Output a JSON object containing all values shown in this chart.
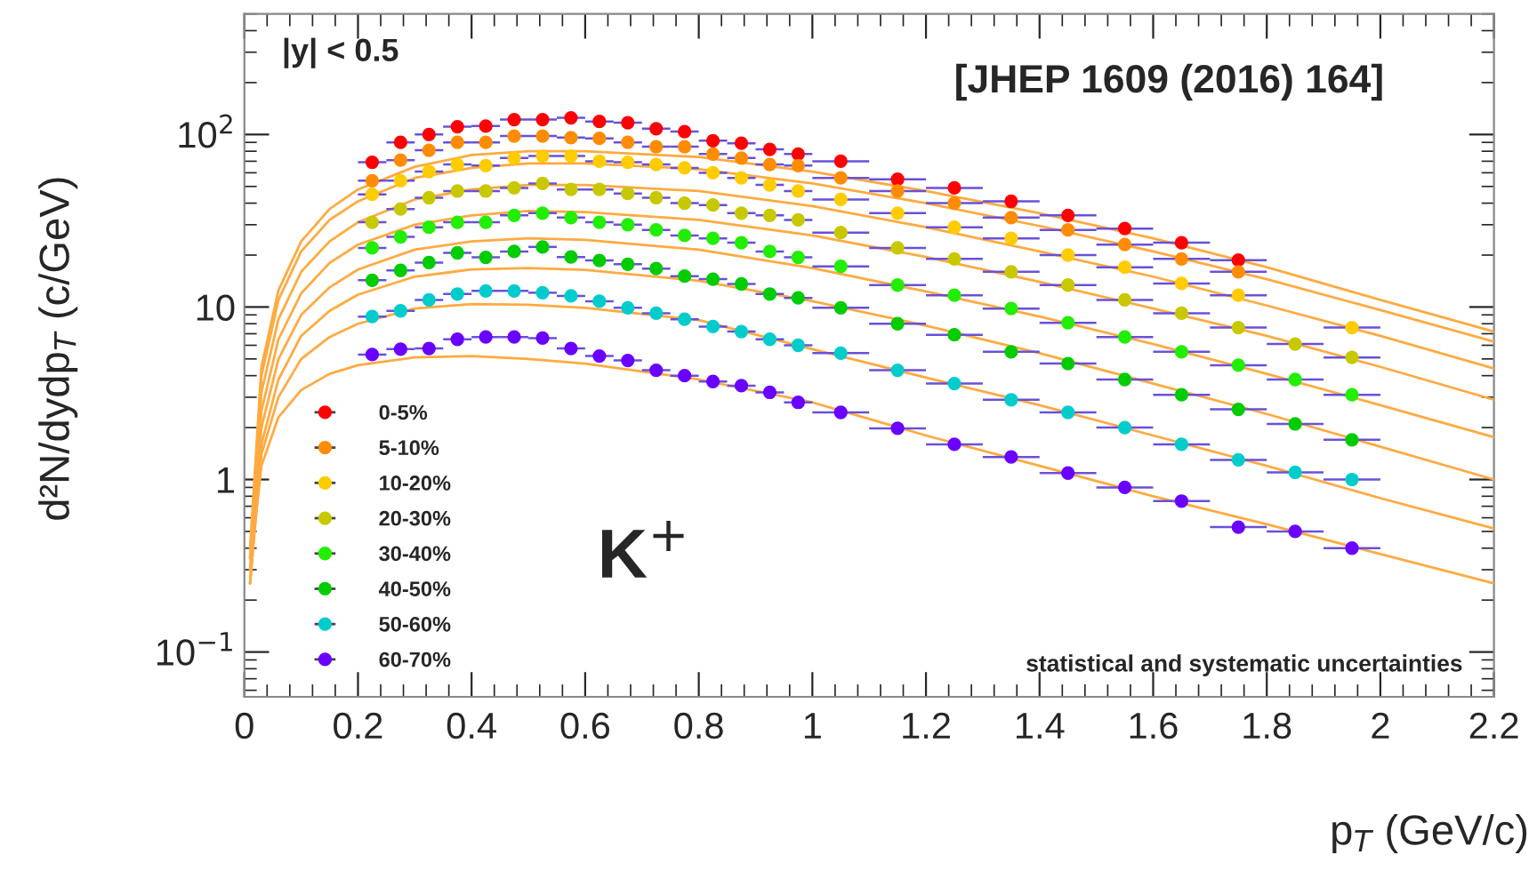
{
  "chart_data": {
    "type": "scatter",
    "xlabel": "p$_{T}$ (GeV/c)",
    "ylabel": "d²N/dydp$_{T}$ (c/GeV)",
    "annotations": [
      "|y| < 0.5",
      "[JHEP 1609 (2016) 164]",
      "K$^{+}$",
      "statistical and systematic uncertainties"
    ],
    "x": [
      0.225,
      0.275,
      0.325,
      0.375,
      0.425,
      0.475,
      0.525,
      0.575,
      0.625,
      0.675,
      0.725,
      0.775,
      0.825,
      0.875,
      0.925,
      0.975,
      1.05,
      1.15,
      1.25,
      1.35,
      1.45,
      1.55,
      1.65,
      1.75,
      1.85,
      1.95
    ],
    "log": "y",
    "xlim": [
      0,
      2.2
    ],
    "ylim": [
      0.055,
      500
    ],
    "xticks": [
      0,
      0.2,
      0.4,
      0.6,
      0.8,
      1,
      1.2,
      1.4,
      1.6,
      1.8,
      2,
      2.2
    ],
    "yticks": [
      {
        "value": 0.1,
        "label": "10$^{−1}$"
      },
      1,
      10,
      {
        "value": 100,
        "label": "10$^{2}$"
      }
    ],
    "grid": false,
    "legend": "bottom left",
    "marker": "circle",
    "series": [
      {
        "name": "0-5%",
        "color": "#ff0000",
        "values": [
          69,
          90,
          100,
          111,
          112,
          122,
          122,
          125,
          119,
          117,
          108,
          104,
          92,
          89,
          82,
          77,
          70,
          55,
          49,
          41,
          34,
          28.5,
          23.6,
          18.7,
          null,
          null
        ],
        "xerrors": [
          0.025,
          0.025,
          0.025,
          0.025,
          0.025,
          0.025,
          0.025,
          0.025,
          0.025,
          0.025,
          0.025,
          0.025,
          0.025,
          0.025,
          0.025,
          0.025,
          0.05,
          0.05,
          0.05,
          0.05,
          0.05,
          0.05,
          0.05,
          0.05,
          null,
          null
        ]
      },
      {
        "name": "5-10%",
        "color": "#ff8c00",
        "values": [
          54,
          71,
          81,
          90,
          90,
          98,
          98,
          96,
          95,
          90,
          85,
          85,
          77,
          73,
          67,
          66,
          56,
          47,
          40,
          33,
          28,
          23,
          19,
          16,
          null,
          null
        ],
        "xerrors": [
          0.025,
          0.025,
          0.025,
          0.025,
          0.025,
          0.025,
          0.025,
          0.025,
          0.025,
          0.025,
          0.025,
          0.025,
          0.025,
          0.025,
          0.025,
          0.025,
          0.05,
          0.05,
          0.05,
          0.05,
          0.05,
          0.05,
          0.05,
          0.05,
          null,
          null
        ]
      },
      {
        "name": "10-20%",
        "color": "#ffcc00",
        "values": [
          45,
          54,
          61,
          67,
          66,
          73,
          75,
          75,
          70,
          69,
          67,
          64,
          60,
          56,
          51,
          47,
          42,
          35,
          29,
          25,
          20,
          17,
          13.7,
          11.7,
          null,
          7.6
        ],
        "xerrors": [
          0.025,
          0.025,
          0.025,
          0.025,
          0.025,
          0.025,
          0.025,
          0.025,
          0.025,
          0.025,
          0.025,
          0.025,
          0.025,
          0.025,
          0.025,
          0.025,
          0.05,
          0.05,
          0.05,
          0.05,
          0.05,
          0.05,
          0.05,
          0.05,
          null,
          0.05
        ]
      },
      {
        "name": "20-30%",
        "color": "#c8c800",
        "values": [
          31,
          37,
          43,
          47,
          47,
          49,
          52,
          48,
          48,
          45.5,
          43,
          40,
          39,
          35,
          34,
          32,
          27,
          22,
          19,
          16,
          13.4,
          11,
          9.2,
          7.6,
          6.1,
          5.1
        ],
        "xerrors": [
          0.025,
          0.025,
          0.025,
          0.025,
          0.025,
          0.025,
          0.025,
          0.025,
          0.025,
          0.025,
          0.025,
          0.025,
          0.025,
          0.025,
          0.025,
          0.025,
          0.05,
          0.05,
          0.05,
          0.05,
          0.05,
          0.05,
          0.05,
          0.05,
          0.05,
          0.05
        ]
      },
      {
        "name": "30-40%",
        "color": "#22ee00",
        "values": [
          22,
          25.5,
          29,
          31,
          31,
          34,
          35,
          33,
          31,
          30,
          28,
          26,
          25,
          23.6,
          21,
          19.4,
          17.2,
          13.4,
          11.7,
          9.8,
          8.1,
          6.7,
          5.5,
          4.6,
          3.8,
          3.1
        ],
        "xerrors": [
          0.025,
          0.025,
          0.025,
          0.025,
          0.025,
          0.025,
          0.025,
          0.025,
          0.025,
          0.025,
          0.025,
          0.025,
          0.025,
          0.025,
          0.025,
          0.025,
          0.05,
          0.05,
          0.05,
          0.05,
          0.05,
          0.05,
          0.05,
          0.05,
          0.05,
          0.05
        ]
      },
      {
        "name": "40-50%",
        "color": "#00cc00",
        "values": [
          14.3,
          16.3,
          18.1,
          20.6,
          19.4,
          21,
          22.3,
          19.5,
          18.6,
          17.7,
          16.7,
          15.1,
          14.5,
          13.6,
          11.9,
          11.3,
          9.9,
          8.0,
          6.9,
          5.5,
          4.7,
          3.8,
          3.1,
          2.55,
          2.1,
          1.7
        ],
        "xerrors": [
          0.025,
          0.025,
          0.025,
          0.025,
          0.025,
          0.025,
          0.025,
          0.025,
          0.025,
          0.025,
          0.025,
          0.025,
          0.025,
          0.025,
          0.025,
          0.025,
          0.05,
          0.05,
          0.05,
          0.05,
          0.05,
          0.05,
          0.05,
          0.05,
          0.05,
          0.05
        ]
      },
      {
        "name": "50-60%",
        "color": "#00cccc",
        "values": [
          8.8,
          9.5,
          11,
          11.9,
          12.4,
          12.4,
          12.1,
          11.6,
          10.8,
          9.9,
          9.2,
          8.5,
          7.7,
          7.2,
          6.5,
          6.0,
          5.4,
          4.3,
          3.6,
          2.9,
          2.45,
          2.0,
          1.6,
          1.3,
          1.1,
          1.0
        ],
        "xerrors": [
          0.025,
          0.025,
          0.025,
          0.025,
          0.025,
          0.025,
          0.025,
          0.025,
          0.025,
          0.025,
          0.025,
          0.025,
          0.025,
          0.025,
          0.025,
          0.025,
          0.05,
          0.05,
          0.05,
          0.05,
          0.05,
          0.05,
          0.05,
          0.05,
          0.05,
          0.05
        ]
      },
      {
        "name": "60-70%",
        "color": "#6a00ff",
        "values": [
          5.3,
          5.7,
          5.75,
          6.5,
          6.7,
          6.7,
          6.6,
          5.75,
          5.2,
          4.9,
          4.3,
          4.0,
          3.7,
          3.5,
          3.2,
          2.8,
          2.45,
          1.98,
          1.6,
          1.35,
          1.09,
          0.9,
          0.75,
          0.53,
          0.5,
          0.4
        ],
        "xerrors": [
          0.025,
          0.025,
          0.025,
          0.025,
          0.025,
          0.025,
          0.025,
          0.025,
          0.025,
          0.025,
          0.025,
          0.025,
          0.025,
          0.025,
          0.025,
          0.025,
          0.05,
          0.05,
          0.05,
          0.05,
          0.05,
          0.05,
          0.05,
          0.05,
          0.05,
          0.05
        ]
      },
      {
        "type": "line",
        "color": "#ffaa40",
        "marker": "none",
        "x": [
          0.01,
          0.03,
          0.06,
          0.1,
          0.15,
          0.2,
          0.3,
          0.4,
          0.5,
          0.6,
          0.8,
          1.0,
          1.2,
          1.4,
          1.6,
          1.8,
          2.0,
          2.2
        ],
        "values": [
          0.4,
          4.5,
          12.5,
          24,
          37,
          48,
          65,
          76,
          80,
          80,
          74,
          61,
          47,
          35,
          25,
          17,
          11,
          7.2
        ]
      },
      {
        "type": "line",
        "color": "#ffaa40",
        "marker": "none",
        "x": [
          0.01,
          0.03,
          0.06,
          0.1,
          0.15,
          0.2,
          0.3,
          0.4,
          0.5,
          0.6,
          0.8,
          1.0,
          1.2,
          1.4,
          1.6,
          1.8,
          2.0,
          2.2
        ],
        "values": [
          0.35,
          4,
          11,
          21,
          32,
          41,
          56,
          64,
          68,
          68,
          63,
          52,
          40,
          29.5,
          21,
          14.5,
          9.6,
          6.3
        ]
      },
      {
        "type": "line",
        "color": "#ffaa40",
        "marker": "none",
        "x": [
          0.01,
          0.03,
          0.06,
          0.1,
          0.15,
          0.2,
          0.3,
          0.4,
          0.5,
          0.6,
          0.8,
          1.0,
          1.2,
          1.4,
          1.6,
          1.8,
          2.0,
          2.2
        ],
        "values": [
          0.35,
          3.2,
          8.5,
          16,
          24,
          31,
          42,
          48,
          51,
          51,
          47,
          38.5,
          29,
          21,
          15,
          10.2,
          6.8,
          4.4
        ]
      },
      {
        "type": "line",
        "color": "#ffaa40",
        "marker": "none",
        "x": [
          0.01,
          0.03,
          0.06,
          0.1,
          0.15,
          0.2,
          0.3,
          0.4,
          0.5,
          0.6,
          0.8,
          1.0,
          1.2,
          1.4,
          1.6,
          1.8,
          2.0,
          2.2
        ],
        "values": [
          0.3,
          2.5,
          6.5,
          12,
          18,
          23,
          30,
          34,
          36,
          35.5,
          32,
          26,
          19.5,
          14,
          9.8,
          6.8,
          4.5,
          2.9
        ]
      },
      {
        "type": "line",
        "color": "#ffaa40",
        "marker": "none",
        "x": [
          0.01,
          0.03,
          0.06,
          0.1,
          0.15,
          0.2,
          0.3,
          0.4,
          0.5,
          0.6,
          0.8,
          1.0,
          1.2,
          1.4,
          1.6,
          1.8,
          2.0,
          2.2
        ],
        "values": [
          0.25,
          2.0,
          5.0,
          9,
          13,
          16.5,
          21.5,
          24,
          25,
          24.5,
          21.5,
          16.8,
          12.3,
          8.8,
          6.1,
          4.1,
          2.7,
          1.76
        ]
      },
      {
        "type": "line",
        "color": "#ffaa40",
        "marker": "none",
        "x": [
          0.01,
          0.03,
          0.06,
          0.1,
          0.15,
          0.2,
          0.3,
          0.4,
          0.5,
          0.6,
          0.8,
          1.0,
          1.2,
          1.4,
          1.6,
          1.8,
          2.0,
          2.2
        ],
        "values": [
          0.25,
          1.6,
          3.8,
          6.8,
          9.5,
          11.8,
          15,
          16.5,
          16.8,
          16.4,
          14.2,
          10.8,
          7.8,
          5.4,
          3.6,
          2.4,
          1.55,
          1.0
        ]
      },
      {
        "type": "line",
        "color": "#ffaa40",
        "marker": "none",
        "x": [
          0.01,
          0.03,
          0.06,
          0.1,
          0.15,
          0.2,
          0.3,
          0.4,
          0.5,
          0.6,
          0.8,
          1.0,
          1.2,
          1.4,
          1.6,
          1.8,
          2.0,
          2.2
        ],
        "values": [
          0.25,
          1.4,
          3.0,
          5.0,
          6.7,
          8.0,
          9.8,
          10.4,
          10.3,
          9.9,
          8.4,
          5.7,
          3.9,
          2.7,
          1.8,
          1.2,
          0.78,
          0.52
        ]
      },
      {
        "type": "line",
        "color": "#ffaa40",
        "marker": "none",
        "x": [
          0.01,
          0.03,
          0.06,
          0.1,
          0.15,
          0.2,
          0.3,
          0.4,
          0.5,
          0.6,
          0.8,
          1.0,
          1.2,
          1.4,
          1.6,
          1.8,
          2.0,
          2.2
        ],
        "values": [
          0.3,
          1.2,
          2.3,
          3.3,
          4.1,
          4.6,
          5.1,
          5.2,
          5.0,
          4.7,
          3.8,
          2.8,
          1.8,
          1.2,
          0.8,
          0.55,
          0.37,
          0.25
        ]
      }
    ]
  }
}
